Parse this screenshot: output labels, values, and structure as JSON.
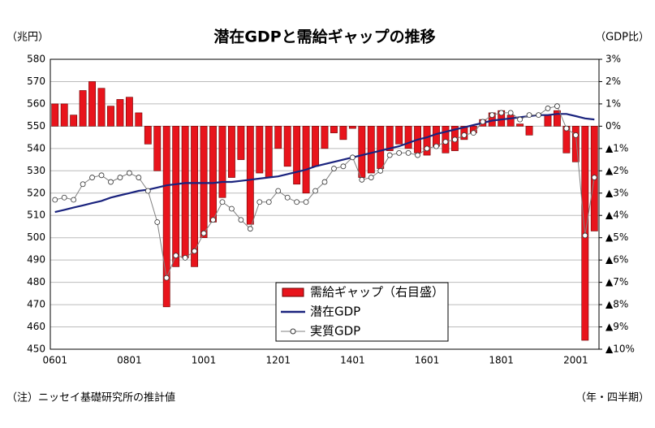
{
  "chart_data": {
    "type": "bar_line",
    "title": "潜在GDPと需給ギャップの推移",
    "y_label": "（兆円）",
    "y2_label": "（GDP比）",
    "x_label": "（年・四半期）",
    "note": "（注）ニッセイ基礎研究所の推計値",
    "categories": [
      "0601",
      null,
      null,
      null,
      null,
      null,
      null,
      null,
      "0801",
      null,
      null,
      null,
      null,
      null,
      null,
      null,
      "1001",
      null,
      null,
      null,
      null,
      null,
      null,
      null,
      "1201",
      null,
      null,
      null,
      null,
      null,
      null,
      null,
      "1401",
      null,
      null,
      null,
      null,
      null,
      null,
      null,
      "1601",
      null,
      null,
      null,
      null,
      null,
      null,
      null,
      "1801",
      null,
      null,
      null,
      null,
      null,
      null,
      null,
      "2001",
      null,
      null
    ],
    "series": [
      {
        "name": "需給ギャップ（右目盛）",
        "type": "bar",
        "axis": "y2",
        "color": "#e8141c",
        "values": [
          1.0,
          1.0,
          0.5,
          1.6,
          2.0,
          1.7,
          0.9,
          1.2,
          1.3,
          0.6,
          -0.8,
          -2.0,
          -8.1,
          -6.3,
          -5.9,
          -6.3,
          -5.0,
          -4.3,
          -3.2,
          -2.3,
          -1.5,
          -4.4,
          -2.1,
          -2.3,
          -1.0,
          -1.8,
          -2.6,
          -3.0,
          -1.8,
          -1.0,
          -0.3,
          -0.6,
          -0.1,
          -2.3,
          -2.1,
          -1.9,
          -1.1,
          -0.8,
          -1.0,
          -1.2,
          -1.3,
          -0.9,
          -1.2,
          -1.1,
          -0.6,
          -0.3,
          0.3,
          0.6,
          0.7,
          0.5,
          0.1,
          -0.4,
          0.0,
          0.5,
          0.7,
          -1.2,
          -1.6,
          -9.6,
          -4.7
        ]
      },
      {
        "name": "潜在GDP",
        "type": "line",
        "color": "#1a237e",
        "values": [
          511.5,
          512.5,
          513.5,
          514.5,
          515.5,
          516.5,
          518,
          519,
          520,
          521,
          521.5,
          522.5,
          523.5,
          524,
          524.5,
          524.5,
          524.5,
          524.5,
          525,
          525,
          525.5,
          526,
          526.5,
          527,
          527.5,
          528.5,
          529.5,
          530.5,
          532,
          533,
          534,
          535,
          536,
          537,
          538,
          539,
          540,
          541,
          542.5,
          544,
          545,
          546.5,
          547.5,
          548.5,
          549.5,
          550.5,
          551.5,
          552.5,
          553,
          553.5,
          554,
          554.5,
          555,
          555,
          555.5,
          555.5,
          554.5,
          553.5,
          553
        ]
      },
      {
        "name": "実質GDP",
        "type": "line_marker",
        "color": "#808080",
        "values": [
          517,
          518,
          517,
          524,
          527,
          528,
          525,
          527,
          529,
          527,
          521,
          507,
          482,
          492,
          491,
          494,
          502,
          508,
          516,
          513,
          508,
          504,
          516,
          516,
          521,
          518,
          516,
          516,
          521,
          525,
          531,
          532,
          536,
          526,
          527,
          530,
          537,
          538,
          538,
          537,
          540,
          541,
          543,
          544,
          546,
          547,
          552,
          555,
          556,
          556,
          553,
          555,
          555,
          558,
          559,
          549,
          546,
          501,
          527
        ]
      }
    ],
    "ylim": [
      450,
      580
    ],
    "yticks": [
      450,
      460,
      470,
      480,
      490,
      500,
      510,
      520,
      530,
      540,
      550,
      560,
      570,
      580
    ],
    "y2lim": [
      -10,
      3
    ],
    "y2ticks": [
      {
        "value": 3,
        "label": "3%"
      },
      {
        "value": 2,
        "label": "2%"
      },
      {
        "value": 1,
        "label": "1%"
      },
      {
        "value": 0,
        "label": "0%"
      },
      {
        "value": -1,
        "label": "▲1%"
      },
      {
        "value": -2,
        "label": "▲2%"
      },
      {
        "value": -3,
        "label": "▲3%"
      },
      {
        "value": -4,
        "label": "▲4%"
      },
      {
        "value": -5,
        "label": "▲5%"
      },
      {
        "value": -6,
        "label": "▲6%"
      },
      {
        "value": -7,
        "label": "▲7%"
      },
      {
        "value": -8,
        "label": "▲8%"
      },
      {
        "value": -9,
        "label": "▲9%"
      },
      {
        "value": -10,
        "label": "▲10%"
      }
    ],
    "grid": true,
    "legend": "lower center"
  }
}
